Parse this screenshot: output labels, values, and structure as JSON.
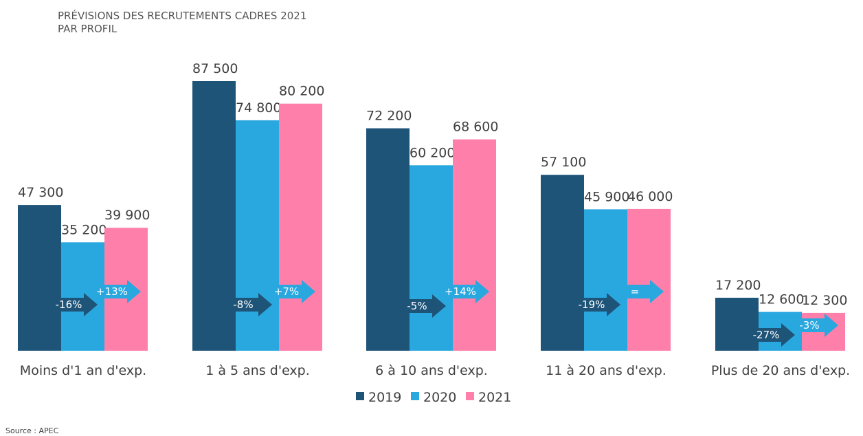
{
  "title": {
    "line1": "PRÉVISIONS  DES RECRUTEMENTS CADRES 2021",
    "line2": "PAR PROFIL"
  },
  "source": "Source : APEC",
  "chart_data": {
    "type": "bar",
    "categories": [
      "Moins d'1 an d'exp.",
      "1 à 5 ans d'exp.",
      "6 à 10 ans d'exp.",
      "11 à 20 ans d'exp.",
      "Plus de 20 ans d'exp."
    ],
    "series": [
      {
        "name": "2019",
        "color": "#1e5478",
        "values": [
          47300,
          87500,
          72200,
          57100,
          17200
        ],
        "labels": [
          "47 300",
          "87 500",
          "72 200",
          "57 100",
          "17 200"
        ]
      },
      {
        "name": "2020",
        "color": "#29a7df",
        "values": [
          35200,
          74800,
          60200,
          45900,
          12600
        ],
        "labels": [
          "35 200",
          "74 800",
          "60 200",
          "45 900",
          "12 600"
        ]
      },
      {
        "name": "2021",
        "color": "#ff7fab",
        "values": [
          39900,
          80200,
          68600,
          46000,
          12300
        ],
        "labels": [
          "39 900",
          "80 200",
          "68 600",
          "46 000",
          "12 300"
        ]
      }
    ],
    "changes_2019_2020": [
      "-16%",
      "-8%",
      "-5%",
      "-19%",
      "-27%"
    ],
    "changes_2020_2021": [
      "+13%",
      "+7%",
      "+14%",
      "=",
      "-3%"
    ],
    "ylim": [
      0,
      87500
    ],
    "grid": false,
    "legend_position": "bottom-center"
  }
}
